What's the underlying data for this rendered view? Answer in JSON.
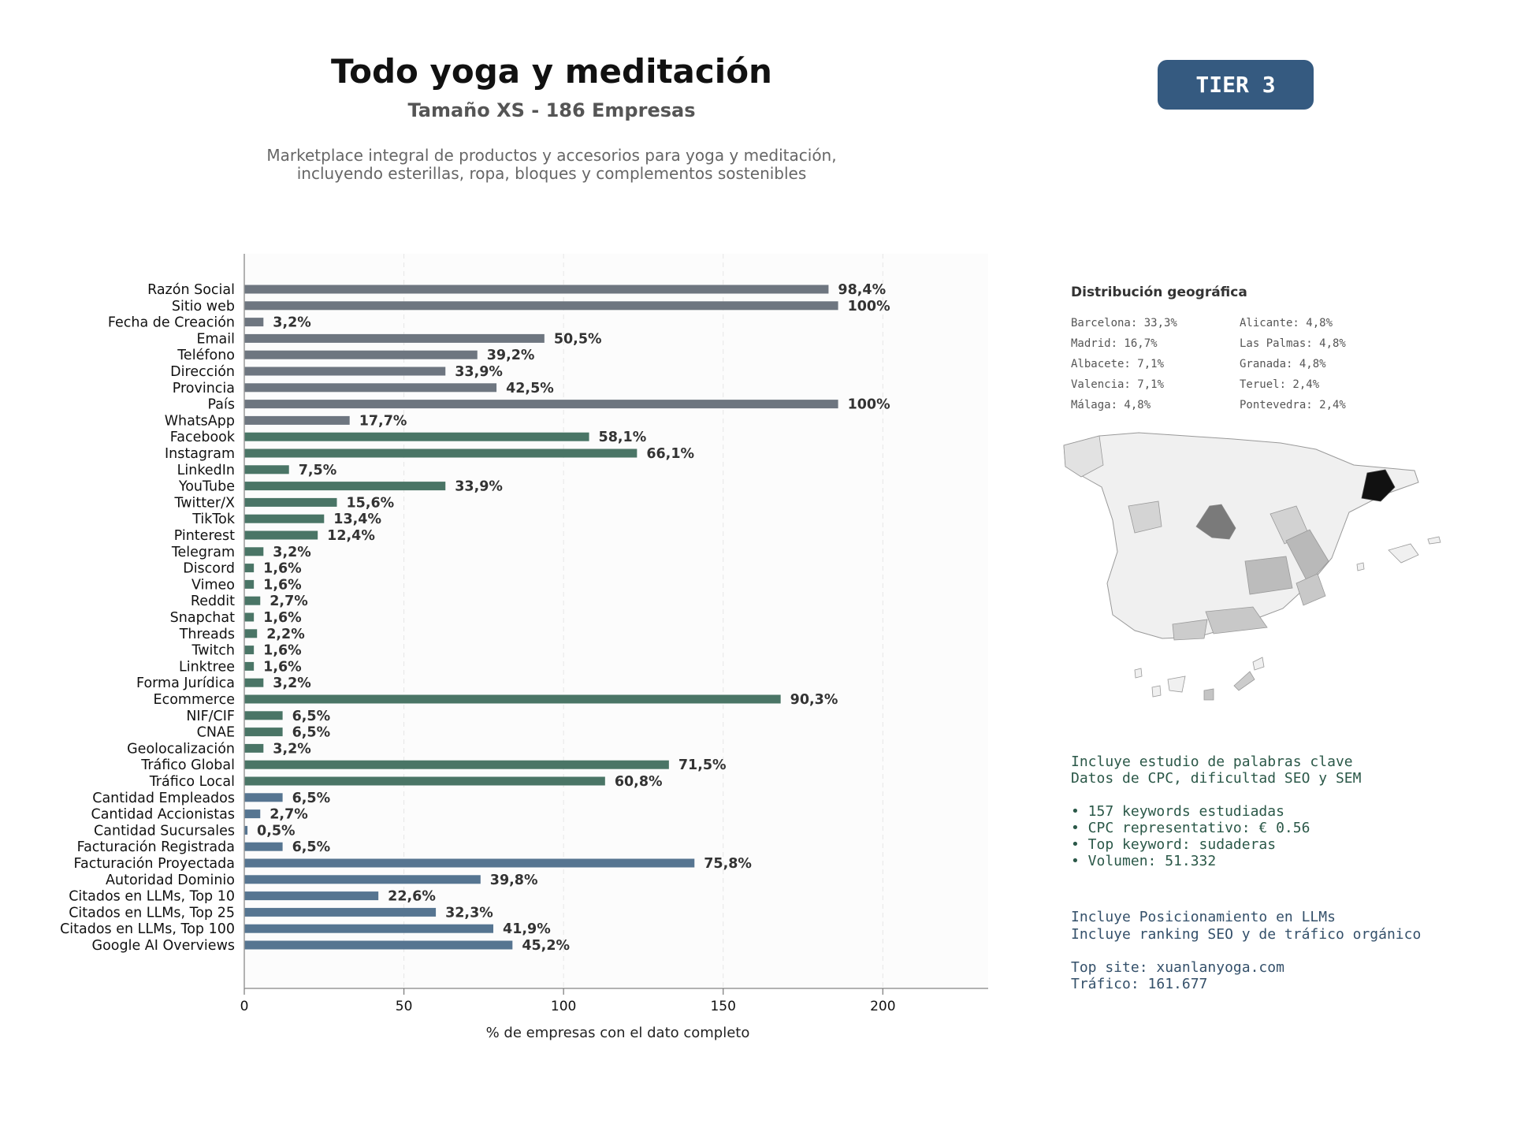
{
  "header": {
    "title": "Todo yoga y meditación",
    "subtitle": "Tamaño XS - 186 Empresas",
    "description_line1": "Marketplace integral de productos y accesorios para yoga y meditación,",
    "description_line2": "incluyendo esterillas, ropa, bloques y complementos sostenibles",
    "tier": "TIER 3"
  },
  "colors": {
    "gray": "#6e7680",
    "green": "#4a7566",
    "blue": "#567591",
    "tier_bg": "#355a80"
  },
  "chart_data": {
    "type": "bar",
    "orientation": "horizontal",
    "xlabel": "% de empresas con el dato completo",
    "xlim": [
      0,
      233
    ],
    "xticks": [
      0,
      50,
      100,
      150,
      200
    ],
    "grid": "vertical dashed",
    "categories": [
      "Razón Social",
      "Sitio web",
      "Fecha de Creación",
      "Email",
      "Teléfono",
      "Dirección",
      "Provincia",
      "País",
      "WhatsApp",
      "Facebook",
      "Instagram",
      "LinkedIn",
      "YouTube",
      "Twitter/X",
      "TikTok",
      "Pinterest",
      "Telegram",
      "Discord",
      "Vimeo",
      "Reddit",
      "Snapchat",
      "Threads",
      "Twitch",
      "Linktree",
      "Forma Jurídica",
      "Ecommerce",
      "NIF/CIF",
      "CNAE",
      "Geolocalización",
      "Tráfico Global",
      "Tráfico Local",
      "Cantidad Empleados",
      "Cantidad Accionistas",
      "Cantidad Sucursales",
      "Facturación Registrada",
      "Facturación Proyectada",
      "Autoridad Dominio",
      "Citados en LLMs, Top 10",
      "Citados en LLMs, Top 25",
      "Citados en LLMs, Top 100",
      "Google AI Overviews"
    ],
    "values": [
      183,
      186,
      6,
      94,
      73,
      63,
      79,
      186,
      33,
      108,
      123,
      14,
      63,
      29,
      25,
      23,
      6,
      3,
      3,
      5,
      3,
      4,
      3,
      3,
      6,
      168,
      12,
      12,
      6,
      133,
      113,
      12,
      5,
      1,
      12,
      141,
      74,
      42,
      60,
      78,
      84
    ],
    "labels": [
      "98,4%",
      "100%",
      "3,2%",
      "50,5%",
      "39,2%",
      "33,9%",
      "42,5%",
      "100%",
      "17,7%",
      "58,1%",
      "66,1%",
      "7,5%",
      "33,9%",
      "15,6%",
      "13,4%",
      "12,4%",
      "3,2%",
      "1,6%",
      "1,6%",
      "2,7%",
      "1,6%",
      "2,2%",
      "1,6%",
      "1,6%",
      "3,2%",
      "90,3%",
      "6,5%",
      "6,5%",
      "3,2%",
      "71,5%",
      "60,8%",
      "6,5%",
      "2,7%",
      "0,5%",
      "6,5%",
      "75,8%",
      "39,8%",
      "22,6%",
      "32,3%",
      "41,9%",
      "45,2%"
    ],
    "groups": [
      "gray",
      "gray",
      "gray",
      "gray",
      "gray",
      "gray",
      "gray",
      "gray",
      "gray",
      "green",
      "green",
      "green",
      "green",
      "green",
      "green",
      "green",
      "green",
      "green",
      "green",
      "green",
      "green",
      "green",
      "green",
      "green",
      "green",
      "green",
      "green",
      "green",
      "green",
      "green",
      "green",
      "blue",
      "blue",
      "blue",
      "blue",
      "blue",
      "blue",
      "blue",
      "blue",
      "blue",
      "blue"
    ]
  },
  "geo": {
    "title": "Distribución geográfica",
    "items": [
      "Barcelona: 33,3%",
      "Alicante: 4,8%",
      "Madrid: 16,7%",
      "Las Palmas: 4,8%",
      "Albacete: 7,1%",
      "Granada: 4,8%",
      "Valencia: 7,1%",
      "Teruel: 2,4%",
      "Málaga: 4,8%",
      "Pontevedra: 2,4%"
    ]
  },
  "keywords": {
    "line1": "Incluye estudio de palabras clave",
    "line2": "Datos de CPC, dificultad SEO y SEM",
    "bullets": [
      "• 157 keywords estudiadas",
      "• CPC representativo: € 0.56",
      "• Top keyword: sudaderas",
      "• Volumen: 51.332"
    ]
  },
  "llm": {
    "line1": "Incluye Posicionamiento en LLMs",
    "line2": "Incluye ranking SEO y de tráfico orgánico",
    "top_site": "Top site: xuanlanyoga.com",
    "traffic": "Tráfico: 161.677"
  }
}
